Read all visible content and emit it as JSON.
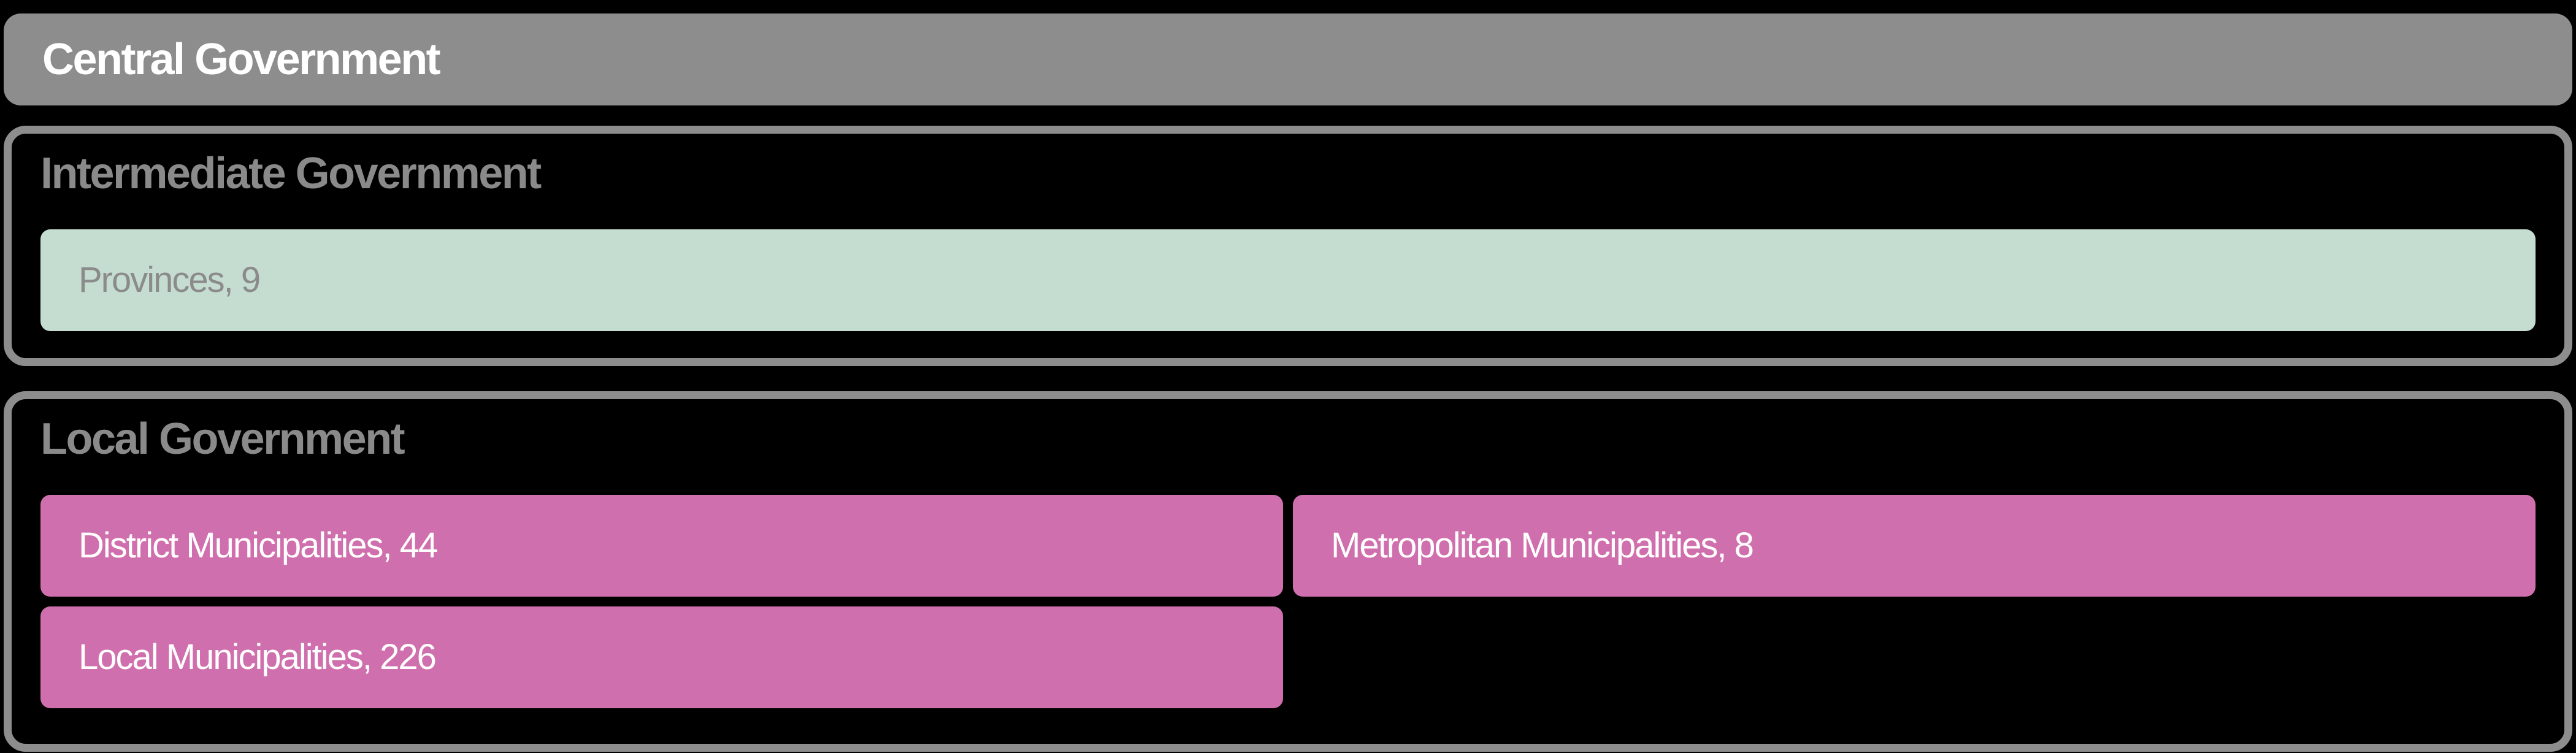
{
  "colors": {
    "background": "#000000",
    "frame_gray": "#8d8d8d",
    "bar_gray": "#8d8d8d",
    "heading_gray": "#8a8a8a",
    "green": "#c5ddd0",
    "green_text": "#8b8b8b",
    "pink": "#d06fad",
    "white": "#ffffff"
  },
  "central": {
    "label": "Central Government"
  },
  "intermediate": {
    "heading": "Intermediate Government",
    "items": [
      {
        "label": "Provinces, 9",
        "name": "Provinces",
        "count": 9
      }
    ]
  },
  "local": {
    "heading": "Local Government",
    "items": [
      {
        "label": "District Municipalities, 44",
        "name": "District Municipalities",
        "count": 44
      },
      {
        "label": "Metropolitan Municipalities, 8",
        "name": "Metropolitan Municipalities",
        "count": 8
      },
      {
        "label": "Local Municipalities, 226",
        "name": "Local Municipalities",
        "count": 226
      }
    ]
  }
}
